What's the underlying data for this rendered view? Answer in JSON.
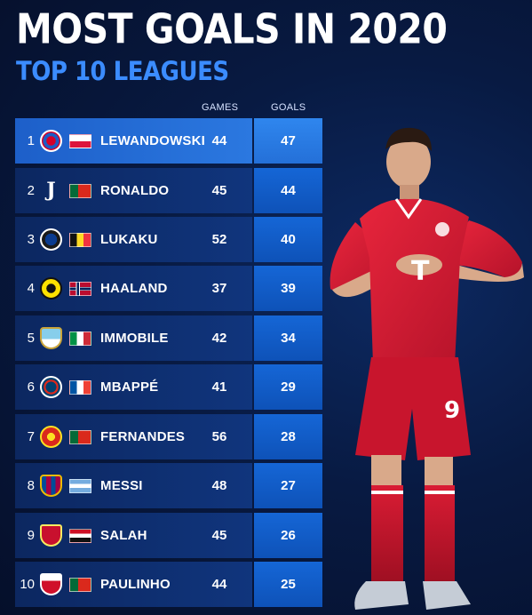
{
  "header": {
    "title": "MOST GOALS IN 2020",
    "subtitle": "TOP 10 LEAGUES"
  },
  "columns": {
    "games": "GAMES",
    "goals": "GOALS"
  },
  "rows": [
    {
      "rank": "1",
      "club_icon": "bayern-munich-crest-icon",
      "flag_icon": "poland-flag-icon",
      "player": "LEWANDOWSKI",
      "games": "44",
      "goals": "47"
    },
    {
      "rank": "2",
      "club_icon": "juventus-crest-icon",
      "flag_icon": "portugal-flag-icon",
      "player": "RONALDO",
      "games": "45",
      "goals": "44"
    },
    {
      "rank": "3",
      "club_icon": "inter-milan-crest-icon",
      "flag_icon": "belgium-flag-icon",
      "player": "LUKAKU",
      "games": "52",
      "goals": "40"
    },
    {
      "rank": "4",
      "club_icon": "borussia-dortmund-crest-icon",
      "flag_icon": "norway-flag-icon",
      "player": "HAALAND",
      "games": "37",
      "goals": "39"
    },
    {
      "rank": "5",
      "club_icon": "lazio-crest-icon",
      "flag_icon": "italy-flag-icon",
      "player": "IMMOBILE",
      "games": "42",
      "goals": "34"
    },
    {
      "rank": "6",
      "club_icon": "psg-crest-icon",
      "flag_icon": "france-flag-icon",
      "player": "MBAPPÉ",
      "games": "41",
      "goals": "29"
    },
    {
      "rank": "7",
      "club_icon": "manchester-united-crest-icon",
      "flag_icon": "portugal-flag-icon",
      "player": "FERNANDES",
      "games": "56",
      "goals": "28"
    },
    {
      "rank": "8",
      "club_icon": "barcelona-crest-icon",
      "flag_icon": "argentina-flag-icon",
      "player": "MESSI",
      "games": "48",
      "goals": "27"
    },
    {
      "rank": "9",
      "club_icon": "liverpool-crest-icon",
      "flag_icon": "egypt-flag-icon",
      "player": "SALAH",
      "games": "45",
      "goals": "26"
    },
    {
      "rank": "10",
      "club_icon": "braga-crest-icon",
      "flag_icon": "portugal-flag-icon",
      "player": "PAULINHO",
      "games": "44",
      "goals": "25"
    }
  ],
  "colors": {
    "accent": "#3b8cff",
    "background": "#081a42",
    "highlight_row": "#2b78e0",
    "goals_cell": "#1566d6"
  },
  "image": {
    "icon": "football-player-celebrating-icon"
  }
}
